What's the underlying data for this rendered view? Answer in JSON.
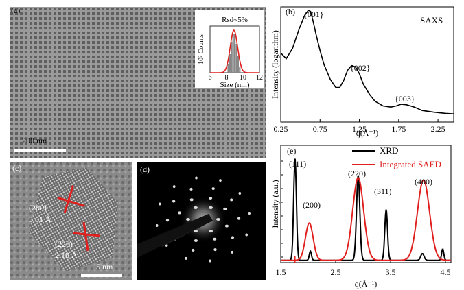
{
  "panel_a": {
    "label": "(a)",
    "scale_bar": "200 nm",
    "inset": {
      "title": "Rsd~5%",
      "xlabel": "Size (nm)",
      "ylabel": "10² Counts",
      "xticks": [
        "6",
        "8",
        "10",
        "12"
      ]
    }
  },
  "panel_b": {
    "label": "(b)",
    "tag": "SAXS",
    "peaks": [
      "{001}",
      "{002}",
      "{003}"
    ]
  },
  "panel_c": {
    "label": "(c)",
    "plane1": "(200)",
    "d1": "3.01 Å",
    "plane2": "(220)",
    "d2": "2.18 Å",
    "scale_bar": "5 nm"
  },
  "panel_d": {
    "label": "(d)"
  },
  "panel_e": {
    "label": "(e)",
    "peaks": [
      "(111)",
      "(200)",
      "(220)",
      "(311)",
      "(400)"
    ]
  },
  "chart_data": [
    {
      "type": "line",
      "title": "SAXS",
      "xlabel": "q(Å⁻¹)",
      "ylabel": "Intensity (logarithm)",
      "xlim": [
        0.25,
        2.45
      ],
      "xticks": [
        "0.25",
        "0.75",
        "1.25",
        "1.75",
        "2.25"
      ],
      "log_y": true,
      "series": [
        {
          "x": [
            0.25,
            0.32,
            0.4,
            0.48,
            0.55,
            0.6,
            0.63,
            0.66,
            0.7,
            0.75,
            0.8,
            0.88,
            0.95,
            1.0,
            1.05,
            1.1,
            1.15,
            1.2,
            1.25,
            1.3,
            1.38,
            1.45,
            1.55,
            1.65,
            1.72,
            1.78,
            1.85,
            1.95,
            2.05,
            2.2,
            2.35,
            2.45
          ],
          "y": [
            0.6,
            0.55,
            0.64,
            0.8,
            0.92,
            0.97,
            0.96,
            0.88,
            0.76,
            0.62,
            0.5,
            0.37,
            0.3,
            0.3,
            0.36,
            0.45,
            0.49,
            0.48,
            0.42,
            0.33,
            0.24,
            0.18,
            0.14,
            0.13,
            0.14,
            0.155,
            0.15,
            0.13,
            0.1,
            0.085,
            0.075,
            0.07
          ]
        }
      ]
    },
    {
      "type": "line",
      "xlabel": "q(Å⁻¹)",
      "ylabel": "Intensity (a.u.)",
      "xlim": [
        1.5,
        4.6
      ],
      "xticks": [
        "1.5",
        "2.5",
        "3.5",
        "4.5"
      ],
      "legend": "top-center",
      "series": [
        {
          "name": "XRD",
          "color": "#000000",
          "peaks": [
            [
              1.76,
              0.9,
              0.025
            ],
            [
              2.04,
              0.08,
              0.02
            ],
            [
              2.91,
              0.75,
              0.03
            ],
            [
              3.42,
              0.45,
              0.025
            ],
            [
              4.08,
              0.06,
              0.03
            ],
            [
              4.45,
              0.1,
              0.02
            ]
          ],
          "baseline": 0.02
        },
        {
          "name": "Integrated SAED",
          "color": "#e0201e",
          "peaks": [
            [
              2.02,
              0.33,
              0.07
            ],
            [
              2.91,
              0.73,
              0.1
            ],
            [
              4.1,
              0.71,
              0.11
            ]
          ],
          "baseline": 0.02
        }
      ]
    },
    {
      "type": "bar",
      "title": "Rsd~5%",
      "xlabel": "Size (nm)",
      "ylabel": "10² Counts",
      "xlim": [
        6,
        12
      ],
      "categories": [
        "8.2",
        "8.4",
        "8.6",
        "8.8",
        "9.0",
        "9.2",
        "9.4",
        "9.6"
      ],
      "values": [
        0.2,
        0.45,
        0.75,
        0.95,
        0.95,
        0.7,
        0.4,
        0.15
      ],
      "fit_color": "#e0201e"
    }
  ]
}
